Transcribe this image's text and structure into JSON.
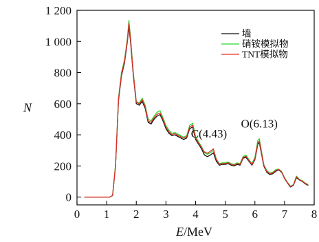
{
  "chart_data": {
    "type": "line",
    "xlabel_italic": "E",
    "xlabel_unit": "/MeV",
    "ylabel": "N",
    "xlim": [
      0,
      8
    ],
    "ylim": [
      -50,
      1200
    ],
    "xticks": [
      0,
      1,
      2,
      3,
      4,
      5,
      6,
      7,
      8
    ],
    "yticks": [
      0,
      200,
      400,
      600,
      800,
      1000,
      1200
    ],
    "ytick_labels": [
      "0",
      "200",
      "400",
      "600",
      "800",
      "1 000",
      "1 200"
    ],
    "legend_position": "top-right",
    "grid": false,
    "annotations": [
      {
        "text": "C(4.43)",
        "x": 4.45,
        "y": 320
      },
      {
        "text": "O(6.13)",
        "x": 6.15,
        "y": 385
      }
    ],
    "series": [
      {
        "name": "墙",
        "color": "#111111",
        "points": [
          [
            0.25,
            0
          ],
          [
            1.1,
            0
          ],
          [
            1.2,
            10
          ],
          [
            1.3,
            200
          ],
          [
            1.4,
            620
          ],
          [
            1.5,
            780
          ],
          [
            1.6,
            860
          ],
          [
            1.7,
            1000
          ],
          [
            1.75,
            1095
          ],
          [
            1.8,
            1010
          ],
          [
            1.9,
            780
          ],
          [
            2.0,
            600
          ],
          [
            2.1,
            590
          ],
          [
            2.2,
            615
          ],
          [
            2.3,
            570
          ],
          [
            2.4,
            480
          ],
          [
            2.5,
            470
          ],
          [
            2.6,
            500
          ],
          [
            2.7,
            520
          ],
          [
            2.8,
            530
          ],
          [
            2.9,
            490
          ],
          [
            3.0,
            440
          ],
          [
            3.1,
            410
          ],
          [
            3.2,
            395
          ],
          [
            3.3,
            400
          ],
          [
            3.4,
            390
          ],
          [
            3.5,
            380
          ],
          [
            3.6,
            370
          ],
          [
            3.7,
            380
          ],
          [
            3.8,
            440
          ],
          [
            3.9,
            450
          ],
          [
            4.0,
            370
          ],
          [
            4.1,
            340
          ],
          [
            4.2,
            310
          ],
          [
            4.3,
            270
          ],
          [
            4.4,
            260
          ],
          [
            4.5,
            270
          ],
          [
            4.6,
            285
          ],
          [
            4.7,
            230
          ],
          [
            4.8,
            205
          ],
          [
            4.9,
            210
          ],
          [
            5.0,
            210
          ],
          [
            5.1,
            215
          ],
          [
            5.2,
            205
          ],
          [
            5.3,
            200
          ],
          [
            5.4,
            210
          ],
          [
            5.5,
            205
          ],
          [
            5.6,
            250
          ],
          [
            5.7,
            255
          ],
          [
            5.8,
            230
          ],
          [
            5.9,
            205
          ],
          [
            6.0,
            240
          ],
          [
            6.1,
            340
          ],
          [
            6.15,
            350
          ],
          [
            6.2,
            300
          ],
          [
            6.3,
            200
          ],
          [
            6.4,
            160
          ],
          [
            6.5,
            145
          ],
          [
            6.6,
            150
          ],
          [
            6.7,
            165
          ],
          [
            6.8,
            175
          ],
          [
            6.9,
            160
          ],
          [
            7.0,
            120
          ],
          [
            7.1,
            90
          ],
          [
            7.2,
            65
          ],
          [
            7.3,
            75
          ],
          [
            7.4,
            125
          ],
          [
            7.5,
            110
          ],
          [
            7.6,
            100
          ],
          [
            7.7,
            85
          ],
          [
            7.8,
            75
          ]
        ]
      },
      {
        "name": "硝铵模拟物",
        "color": "#2bd62b",
        "points": [
          [
            0.25,
            0
          ],
          [
            1.1,
            0
          ],
          [
            1.2,
            12
          ],
          [
            1.3,
            210
          ],
          [
            1.4,
            640
          ],
          [
            1.5,
            800
          ],
          [
            1.6,
            880
          ],
          [
            1.7,
            1020
          ],
          [
            1.75,
            1135
          ],
          [
            1.8,
            1040
          ],
          [
            1.9,
            800
          ],
          [
            2.0,
            615
          ],
          [
            2.1,
            605
          ],
          [
            2.2,
            635
          ],
          [
            2.3,
            590
          ],
          [
            2.4,
            500
          ],
          [
            2.5,
            490
          ],
          [
            2.6,
            520
          ],
          [
            2.7,
            545
          ],
          [
            2.8,
            555
          ],
          [
            2.9,
            510
          ],
          [
            3.0,
            460
          ],
          [
            3.1,
            430
          ],
          [
            3.2,
            410
          ],
          [
            3.3,
            415
          ],
          [
            3.4,
            405
          ],
          [
            3.5,
            395
          ],
          [
            3.6,
            385
          ],
          [
            3.7,
            395
          ],
          [
            3.8,
            460
          ],
          [
            3.9,
            475
          ],
          [
            4.0,
            390
          ],
          [
            4.1,
            355
          ],
          [
            4.2,
            325
          ],
          [
            4.3,
            285
          ],
          [
            4.4,
            275
          ],
          [
            4.5,
            285
          ],
          [
            4.6,
            300
          ],
          [
            4.7,
            245
          ],
          [
            4.8,
            215
          ],
          [
            4.9,
            220
          ],
          [
            5.0,
            220
          ],
          [
            5.1,
            225
          ],
          [
            5.2,
            215
          ],
          [
            5.3,
            210
          ],
          [
            5.4,
            220
          ],
          [
            5.5,
            215
          ],
          [
            5.6,
            260
          ],
          [
            5.7,
            270
          ],
          [
            5.8,
            240
          ],
          [
            5.9,
            215
          ],
          [
            6.0,
            255
          ],
          [
            6.1,
            365
          ],
          [
            6.15,
            375
          ],
          [
            6.2,
            320
          ],
          [
            6.3,
            210
          ],
          [
            6.4,
            170
          ],
          [
            6.5,
            155
          ],
          [
            6.6,
            160
          ],
          [
            6.7,
            175
          ],
          [
            6.8,
            180
          ],
          [
            6.9,
            165
          ],
          [
            7.0,
            125
          ],
          [
            7.1,
            95
          ],
          [
            7.2,
            70
          ],
          [
            7.3,
            80
          ],
          [
            7.4,
            135
          ],
          [
            7.5,
            115
          ],
          [
            7.6,
            105
          ],
          [
            7.7,
            90
          ],
          [
            7.8,
            80
          ]
        ]
      },
      {
        "name": "TNT模拟物",
        "color": "#e33030",
        "points": [
          [
            0.25,
            0
          ],
          [
            1.1,
            0
          ],
          [
            1.2,
            10
          ],
          [
            1.3,
            205
          ],
          [
            1.4,
            630
          ],
          [
            1.5,
            790
          ],
          [
            1.6,
            870
          ],
          [
            1.7,
            1010
          ],
          [
            1.75,
            1115
          ],
          [
            1.8,
            1025
          ],
          [
            1.9,
            790
          ],
          [
            2.0,
            610
          ],
          [
            2.1,
            598
          ],
          [
            2.2,
            625
          ],
          [
            2.3,
            580
          ],
          [
            2.4,
            490
          ],
          [
            2.5,
            480
          ],
          [
            2.6,
            510
          ],
          [
            2.7,
            532
          ],
          [
            2.8,
            540
          ],
          [
            2.9,
            500
          ],
          [
            3.0,
            450
          ],
          [
            3.1,
            420
          ],
          [
            3.2,
            402
          ],
          [
            3.3,
            408
          ],
          [
            3.4,
            398
          ],
          [
            3.5,
            388
          ],
          [
            3.6,
            378
          ],
          [
            3.7,
            388
          ],
          [
            3.8,
            450
          ],
          [
            3.9,
            462
          ],
          [
            4.0,
            380
          ],
          [
            4.1,
            348
          ],
          [
            4.2,
            318
          ],
          [
            4.3,
            290
          ],
          [
            4.4,
            282
          ],
          [
            4.5,
            295
          ],
          [
            4.6,
            310
          ],
          [
            4.7,
            240
          ],
          [
            4.8,
            210
          ],
          [
            4.9,
            215
          ],
          [
            5.0,
            215
          ],
          [
            5.1,
            220
          ],
          [
            5.2,
            210
          ],
          [
            5.3,
            205
          ],
          [
            5.4,
            215
          ],
          [
            5.5,
            210
          ],
          [
            5.6,
            255
          ],
          [
            5.7,
            262
          ],
          [
            5.8,
            235
          ],
          [
            5.9,
            210
          ],
          [
            6.0,
            245
          ],
          [
            6.1,
            350
          ],
          [
            6.15,
            360
          ],
          [
            6.2,
            310
          ],
          [
            6.3,
            205
          ],
          [
            6.4,
            165
          ],
          [
            6.5,
            150
          ],
          [
            6.6,
            155
          ],
          [
            6.7,
            170
          ],
          [
            6.8,
            178
          ],
          [
            6.9,
            162
          ],
          [
            7.0,
            122
          ],
          [
            7.1,
            92
          ],
          [
            7.2,
            68
          ],
          [
            7.3,
            78
          ],
          [
            7.4,
            130
          ],
          [
            7.5,
            112
          ],
          [
            7.6,
            102
          ],
          [
            7.7,
            88
          ],
          [
            7.8,
            78
          ]
        ]
      }
    ]
  }
}
